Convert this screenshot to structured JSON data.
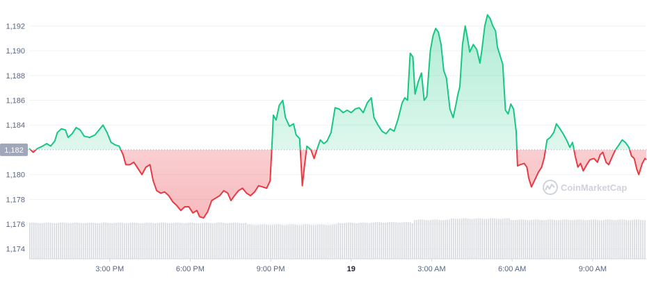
{
  "chart_data": {
    "type": "area",
    "y_ticks": [
      "1,174",
      "1,176",
      "1,178",
      "1,180",
      "1,184",
      "1,186",
      "1,188",
      "1,190",
      "1,192"
    ],
    "x_ticks": [
      {
        "label": "3:00 PM",
        "t": 3,
        "bold": false
      },
      {
        "label": "6:00 PM",
        "t": 6,
        "bold": false
      },
      {
        "label": "9:00 PM",
        "t": 9,
        "bold": false
      },
      {
        "label": "19",
        "t": 12,
        "bold": true
      },
      {
        "label": "3:00 AM",
        "t": 15,
        "bold": false
      },
      {
        "label": "6:00 AM",
        "t": 18,
        "bold": false
      },
      {
        "label": "9:00 AM",
        "t": 21,
        "bold": false
      }
    ],
    "ylim": [
      1173.2,
      1193.2
    ],
    "xlim": [
      0,
      23.0
    ],
    "baseline": {
      "value": 1182.0,
      "label": "1,182"
    },
    "grid": true,
    "colors": {
      "above": "#16c784",
      "below": "#ea3943",
      "volume": "#d6d9de",
      "baseline_badge": "#a1a7bb"
    },
    "price_series": [
      [
        0.0,
        1182.1
      ],
      [
        0.15,
        1181.8
      ],
      [
        0.3,
        1182.1
      ],
      [
        0.5,
        1182.3
      ],
      [
        0.65,
        1182.5
      ],
      [
        0.8,
        1182.3
      ],
      [
        0.95,
        1182.7
      ],
      [
        1.05,
        1183.4
      ],
      [
        1.2,
        1183.7
      ],
      [
        1.35,
        1183.6
      ],
      [
        1.45,
        1183.0
      ],
      [
        1.6,
        1183.3
      ],
      [
        1.75,
        1183.8
      ],
      [
        1.9,
        1183.6
      ],
      [
        2.05,
        1183.1
      ],
      [
        2.25,
        1183.0
      ],
      [
        2.45,
        1183.2
      ],
      [
        2.6,
        1183.6
      ],
      [
        2.75,
        1184.0
      ],
      [
        2.9,
        1183.4
      ],
      [
        3.05,
        1182.6
      ],
      [
        3.2,
        1182.4
      ],
      [
        3.35,
        1182.3
      ],
      [
        3.5,
        1181.6
      ],
      [
        3.6,
        1180.8
      ],
      [
        3.75,
        1180.8
      ],
      [
        3.9,
        1181.0
      ],
      [
        4.05,
        1180.5
      ],
      [
        4.2,
        1180.0
      ],
      [
        4.35,
        1180.6
      ],
      [
        4.5,
        1180.8
      ],
      [
        4.62,
        1179.5
      ],
      [
        4.75,
        1178.7
      ],
      [
        4.9,
        1178.5
      ],
      [
        5.05,
        1178.6
      ],
      [
        5.2,
        1178.3
      ],
      [
        5.35,
        1177.8
      ],
      [
        5.5,
        1177.5
      ],
      [
        5.65,
        1177.1
      ],
      [
        5.8,
        1177.4
      ],
      [
        5.95,
        1177.4
      ],
      [
        6.1,
        1176.9
      ],
      [
        6.25,
        1177.1
      ],
      [
        6.35,
        1176.6
      ],
      [
        6.5,
        1176.5
      ],
      [
        6.65,
        1177.0
      ],
      [
        6.8,
        1177.9
      ],
      [
        6.95,
        1178.1
      ],
      [
        7.1,
        1178.3
      ],
      [
        7.25,
        1178.7
      ],
      [
        7.4,
        1178.5
      ],
      [
        7.52,
        1177.9
      ],
      [
        7.65,
        1178.3
      ],
      [
        7.8,
        1178.7
      ],
      [
        7.95,
        1178.9
      ],
      [
        8.1,
        1178.5
      ],
      [
        8.25,
        1178.3
      ],
      [
        8.4,
        1178.6
      ],
      [
        8.55,
        1179.1
      ],
      [
        8.7,
        1179.0
      ],
      [
        8.85,
        1178.9
      ],
      [
        8.98,
        1179.5
      ],
      [
        9.05,
        1182.5
      ],
      [
        9.1,
        1184.8
      ],
      [
        9.2,
        1184.4
      ],
      [
        9.32,
        1185.6
      ],
      [
        9.45,
        1186.0
      ],
      [
        9.55,
        1184.6
      ],
      [
        9.7,
        1183.9
      ],
      [
        9.85,
        1184.1
      ],
      [
        9.95,
        1183.2
      ],
      [
        10.08,
        1182.9
      ],
      [
        10.18,
        1179.1
      ],
      [
        10.25,
        1180.5
      ],
      [
        10.35,
        1182.3
      ],
      [
        10.5,
        1182.0
      ],
      [
        10.62,
        1181.3
      ],
      [
        10.72,
        1182.0
      ],
      [
        10.85,
        1182.8
      ],
      [
        10.98,
        1182.5
      ],
      [
        11.1,
        1182.7
      ],
      [
        11.25,
        1183.4
      ],
      [
        11.4,
        1185.4
      ],
      [
        11.55,
        1185.3
      ],
      [
        11.7,
        1185.0
      ],
      [
        11.85,
        1185.2
      ],
      [
        12.0,
        1185.0
      ],
      [
        12.15,
        1185.3
      ],
      [
        12.3,
        1185.4
      ],
      [
        12.45,
        1185.0
      ],
      [
        12.6,
        1185.8
      ],
      [
        12.75,
        1186.2
      ],
      [
        12.85,
        1184.6
      ],
      [
        13.0,
        1184.0
      ],
      [
        13.15,
        1183.5
      ],
      [
        13.3,
        1183.3
      ],
      [
        13.45,
        1183.7
      ],
      [
        13.6,
        1183.5
      ],
      [
        13.75,
        1184.5
      ],
      [
        13.9,
        1185.8
      ],
      [
        14.0,
        1186.2
      ],
      [
        14.1,
        1186.0
      ],
      [
        14.2,
        1189.8
      ],
      [
        14.3,
        1189.5
      ],
      [
        14.38,
        1186.5
      ],
      [
        14.5,
        1187.5
      ],
      [
        14.62,
        1188.2
      ],
      [
        14.72,
        1186.0
      ],
      [
        14.82,
        1186.3
      ],
      [
        14.95,
        1190.0
      ],
      [
        15.05,
        1191.2
      ],
      [
        15.15,
        1191.8
      ],
      [
        15.25,
        1191.5
      ],
      [
        15.35,
        1190.5
      ],
      [
        15.45,
        1188.4
      ],
      [
        15.55,
        1187.8
      ],
      [
        15.68,
        1185.3
      ],
      [
        15.8,
        1184.6
      ],
      [
        15.9,
        1185.6
      ],
      [
        15.98,
        1186.5
      ],
      [
        16.05,
        1187.1
      ],
      [
        16.15,
        1190.5
      ],
      [
        16.25,
        1192.0
      ],
      [
        16.32,
        1191.2
      ],
      [
        16.42,
        1189.9
      ],
      [
        16.55,
        1190.5
      ],
      [
        16.68,
        1190.1
      ],
      [
        16.8,
        1189.0
      ],
      [
        16.88,
        1190.2
      ],
      [
        16.98,
        1192.0
      ],
      [
        17.08,
        1192.9
      ],
      [
        17.18,
        1192.6
      ],
      [
        17.28,
        1192.0
      ],
      [
        17.38,
        1191.6
      ],
      [
        17.45,
        1190.3
      ],
      [
        17.55,
        1189.6
      ],
      [
        17.65,
        1188.9
      ],
      [
        17.75,
        1185.2
      ],
      [
        17.85,
        1184.9
      ],
      [
        17.95,
        1185.7
      ],
      [
        18.05,
        1185.3
      ],
      [
        18.15,
        1183.5
      ],
      [
        18.2,
        1180.7
      ],
      [
        18.3,
        1180.8
      ],
      [
        18.45,
        1180.9
      ],
      [
        18.55,
        1180.6
      ],
      [
        18.62,
        1179.7
      ],
      [
        18.72,
        1179.0
      ],
      [
        18.85,
        1179.6
      ],
      [
        18.98,
        1180.2
      ],
      [
        19.1,
        1180.6
      ],
      [
        19.2,
        1181.4
      ],
      [
        19.3,
        1182.8
      ],
      [
        19.42,
        1183.0
      ],
      [
        19.55,
        1183.4
      ],
      [
        19.65,
        1184.1
      ],
      [
        19.78,
        1183.7
      ],
      [
        19.9,
        1183.3
      ],
      [
        20.05,
        1182.7
      ],
      [
        20.15,
        1182.2
      ],
      [
        20.25,
        1182.6
      ],
      [
        20.35,
        1181.5
      ],
      [
        20.45,
        1180.6
      ],
      [
        20.55,
        1180.9
      ],
      [
        20.65,
        1180.3
      ],
      [
        20.78,
        1180.8
      ],
      [
        20.9,
        1181.2
      ],
      [
        21.05,
        1181.3
      ],
      [
        21.18,
        1181.0
      ],
      [
        21.28,
        1181.6
      ],
      [
        21.38,
        1181.8
      ],
      [
        21.5,
        1181.0
      ],
      [
        21.6,
        1180.8
      ],
      [
        21.72,
        1181.4
      ],
      [
        21.85,
        1182.0
      ],
      [
        21.98,
        1182.4
      ],
      [
        22.1,
        1182.8
      ],
      [
        22.22,
        1182.6
      ],
      [
        22.35,
        1182.2
      ],
      [
        22.45,
        1181.5
      ],
      [
        22.55,
        1181.3
      ],
      [
        22.65,
        1180.4
      ],
      [
        22.72,
        1180.0
      ],
      [
        22.85,
        1180.9
      ],
      [
        22.95,
        1181.3
      ],
      [
        23.0,
        1181.2
      ]
    ]
  },
  "watermark": {
    "text": "CoinMarketCap"
  }
}
